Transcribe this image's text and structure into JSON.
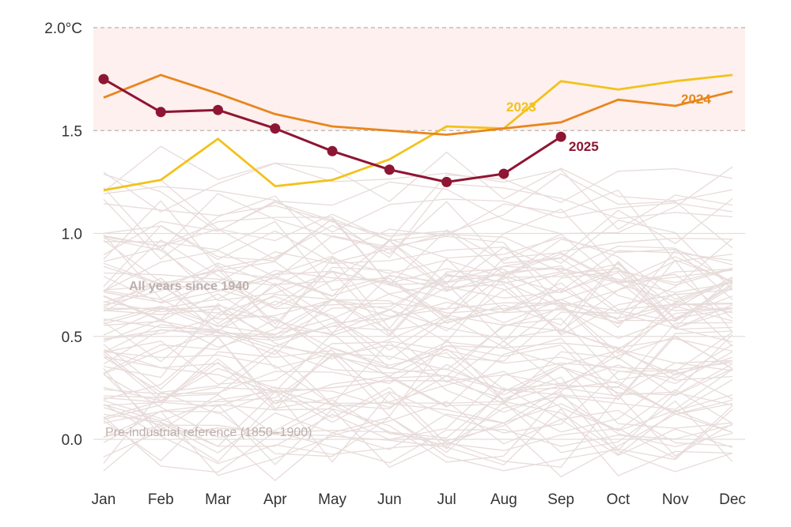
{
  "chart_data": {
    "type": "line",
    "x": [
      "Jan",
      "Feb",
      "Mar",
      "Apr",
      "May",
      "Jun",
      "Jul",
      "Aug",
      "Sep",
      "Oct",
      "Nov",
      "Dec"
    ],
    "ylim": [
      0,
      2.0
    ],
    "y_ticks": [
      "0.0",
      "0.5",
      "1.0",
      "1.5",
      "2.0°C"
    ],
    "threshold_band": [
      1.5,
      2.0
    ],
    "colors": {
      "background_series": "#e7dcda",
      "band": "#fdf0ee",
      "s2023": "#f2c21b",
      "s2024": "#e9861d",
      "s2025": "#8e1533",
      "annotation": "#bdb0ad"
    },
    "series": [
      {
        "name": "2025",
        "values": [
          1.75,
          1.59,
          1.6,
          1.51,
          1.4,
          1.31,
          1.25,
          1.29,
          1.47,
          null,
          null,
          null
        ]
      },
      {
        "name": "2024",
        "values": [
          1.66,
          1.77,
          1.68,
          1.58,
          1.52,
          1.5,
          1.48,
          1.51,
          1.54,
          1.65,
          1.62,
          1.69
        ]
      },
      {
        "name": "2023",
        "values": [
          1.21,
          1.26,
          1.46,
          1.23,
          1.26,
          1.36,
          1.52,
          1.51,
          1.74,
          1.7,
          1.74,
          1.77
        ]
      }
    ],
    "annotations": {
      "all_years": "All years since 1940",
      "pre_industrial": "Pre-industrial reference (1850–1900)"
    },
    "grid": true
  }
}
